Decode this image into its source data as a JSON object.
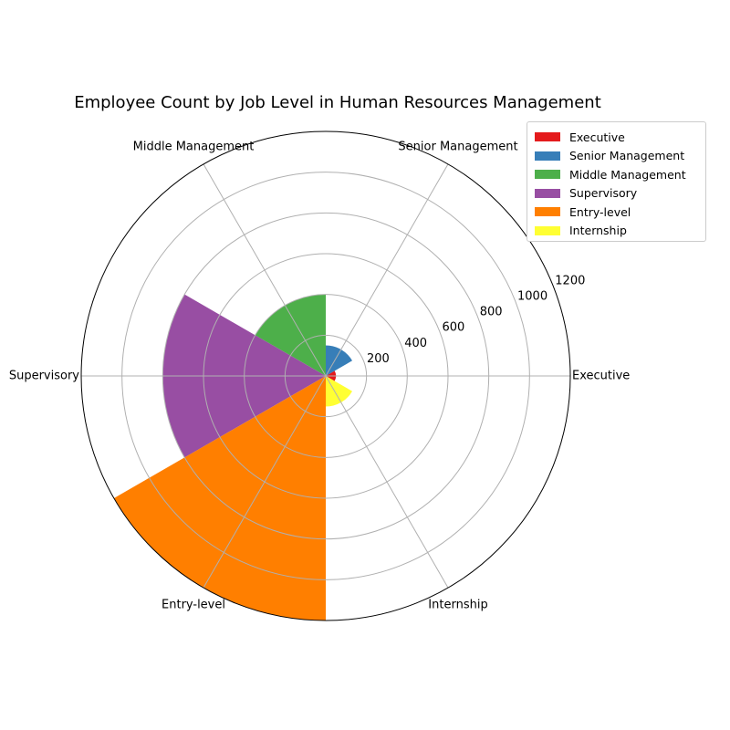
{
  "chart_data": {
    "type": "polar-bar",
    "title": "Employee Count by Job Level in Human Resources Management",
    "categories": [
      "Executive",
      "Senior Management",
      "Middle Management",
      "Supervisory",
      "Entry-level",
      "Internship"
    ],
    "values": [
      50,
      150,
      400,
      800,
      1200,
      150
    ],
    "colors": [
      "#e41a1c",
      "#377eb8",
      "#4daf4a",
      "#984ea3",
      "#ff7f00",
      "#ffff33"
    ],
    "radial_ticks": [
      200,
      400,
      600,
      800,
      1000,
      1200
    ],
    "rlim": [
      0,
      1200
    ],
    "grid": true,
    "legend_position": "top-right"
  }
}
